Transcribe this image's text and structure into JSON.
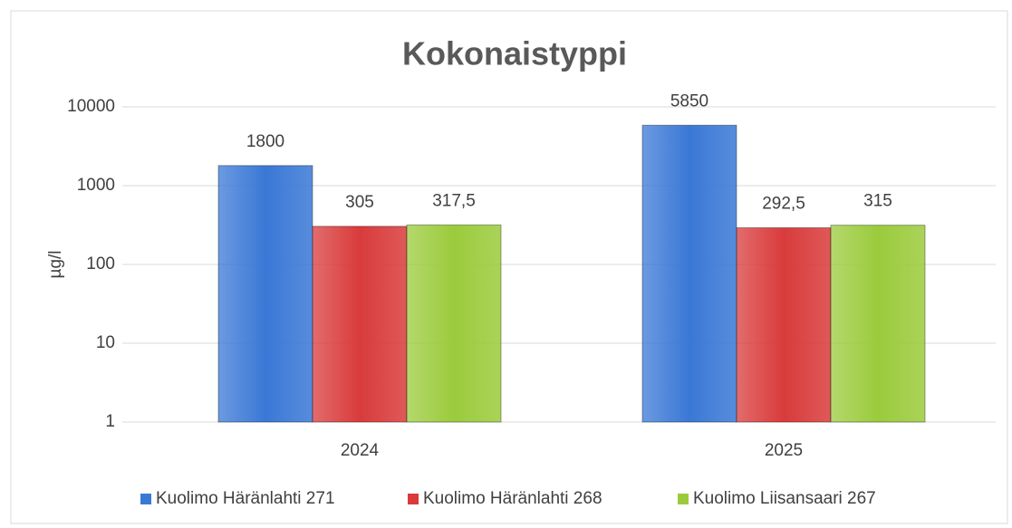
{
  "chart_data": {
    "type": "bar",
    "title": "Kokonaistyppi",
    "y_label": "µg/l",
    "categories": [
      "2024",
      "2025"
    ],
    "series": [
      {
        "name": "Kuolimo Häränlahti 271",
        "color": "#3a78d6",
        "values": [
          1800,
          5850
        ],
        "value_labels": [
          "1800",
          "5850"
        ]
      },
      {
        "name": "Kuolimo Häränlahti 268",
        "color": "#d93b3b",
        "values": [
          305,
          292.5
        ],
        "value_labels": [
          "305",
          "292,5"
        ]
      },
      {
        "name": "Kuolimo Liisansaari 267",
        "color": "#9bcb3c",
        "values": [
          317.5,
          315
        ],
        "value_labels": [
          "317,5",
          "315"
        ]
      }
    ],
    "log_scale": true,
    "ylim": [
      1,
      10000
    ],
    "yticks": [
      1,
      10,
      100,
      1000,
      10000
    ],
    "grid": true,
    "legend": "bottom"
  }
}
